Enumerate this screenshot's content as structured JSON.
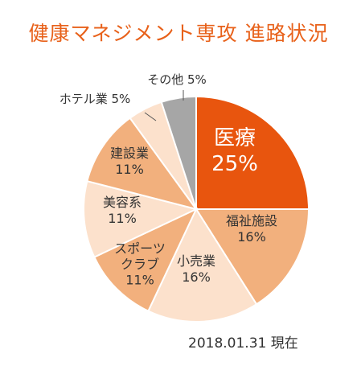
{
  "title": "健康マネジメント専攻  進路状況",
  "note": "2018.01.31 現在",
  "chart_data": {
    "type": "pie",
    "slices": [
      {
        "label": "医療",
        "value": 25,
        "value_label": "25%",
        "color": "#e8550e"
      },
      {
        "label": "福祉施設",
        "value": 16,
        "value_label": "16%",
        "color": "#f2b07d"
      },
      {
        "label": "小売業",
        "value": 16,
        "value_label": "16%",
        "color": "#fce1cc"
      },
      {
        "label": "スポーツ クラブ",
        "value": 11,
        "value_label": "11%",
        "color": "#f2b07d"
      },
      {
        "label": "美容系",
        "value": 11,
        "value_label": "11%",
        "color": "#fce1cc"
      },
      {
        "label": "建設業",
        "value": 11,
        "value_label": "11%",
        "color": "#f2b07d"
      },
      {
        "label": "ホテル業",
        "value": 5,
        "value_label": "5%",
        "color": "#fce1cc"
      },
      {
        "label": "その他",
        "value": 5,
        "value_label": "5%",
        "color": "#a6a6a6"
      }
    ]
  }
}
